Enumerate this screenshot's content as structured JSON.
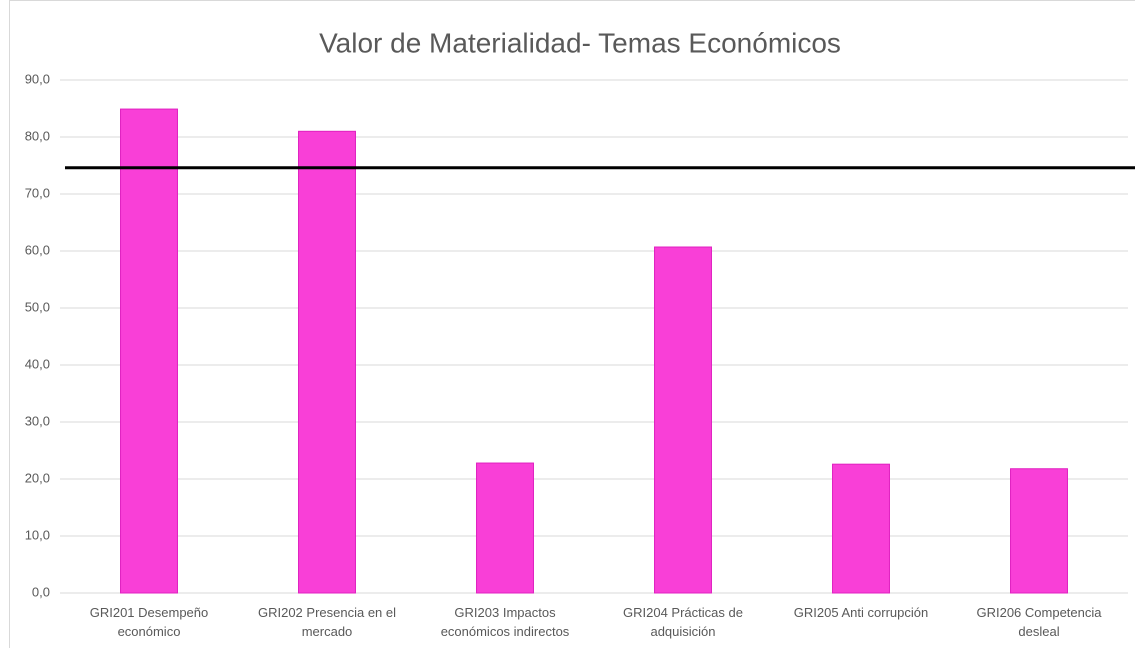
{
  "chart_data": {
    "type": "bar",
    "title": "Valor de Materialidad- Temas Económicos",
    "categories": [
      "GRI201 Desempeño económico",
      "GRI202 Presencia en el mercado",
      "GRI203 Impactos económicos indirectos",
      "GRI204 Prácticas de adquisición",
      "GRI205 Anti corrupción",
      "GRI206 Competencia desleal"
    ],
    "values": [
      84.9,
      81.0,
      22.8,
      60.7,
      22.6,
      21.8
    ],
    "color": "#f93fd7",
    "reference_line": 74.6,
    "ylim": [
      0,
      90
    ],
    "yticks": [
      {
        "value": 0,
        "label": "0,0"
      },
      {
        "value": 10,
        "label": "10,0"
      },
      {
        "value": 20,
        "label": "20,0"
      },
      {
        "value": 30,
        "label": "30,0"
      },
      {
        "value": 40,
        "label": "40,0"
      },
      {
        "value": 50,
        "label": "50,0"
      },
      {
        "value": 60,
        "label": "60,0"
      },
      {
        "value": 70,
        "label": "70,0"
      },
      {
        "value": 80,
        "label": "80,0"
      },
      {
        "value": 90,
        "label": "90,0"
      }
    ],
    "grid": true
  }
}
